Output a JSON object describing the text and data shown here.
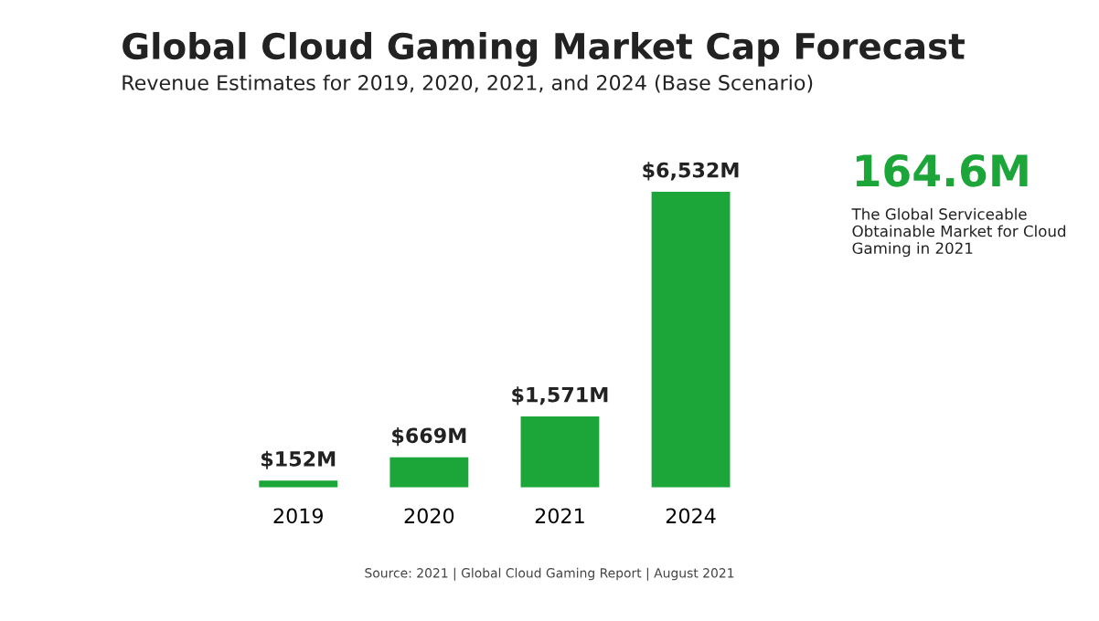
{
  "chart_data": {
    "type": "bar",
    "title": "Global Cloud Gaming Market Cap Forecast",
    "subtitle": "Revenue Estimates for 2019, 2020, 2021, and 2024 (Base Scenario)",
    "categories": [
      "2019",
      "2020",
      "2021",
      "2024"
    ],
    "values": [
      152,
      669,
      1571,
      6532
    ],
    "value_labels": [
      "$152M",
      "$669M",
      "$1,571M",
      "$6,532M"
    ],
    "color": "#1ca63a",
    "annotations": [
      "164.6M",
      "The Global Serviceable Obtainable Market for Cloud Gaming in 2021",
      "Source: 2021 | Global Cloud Gaming Report | August 2021"
    ]
  }
}
